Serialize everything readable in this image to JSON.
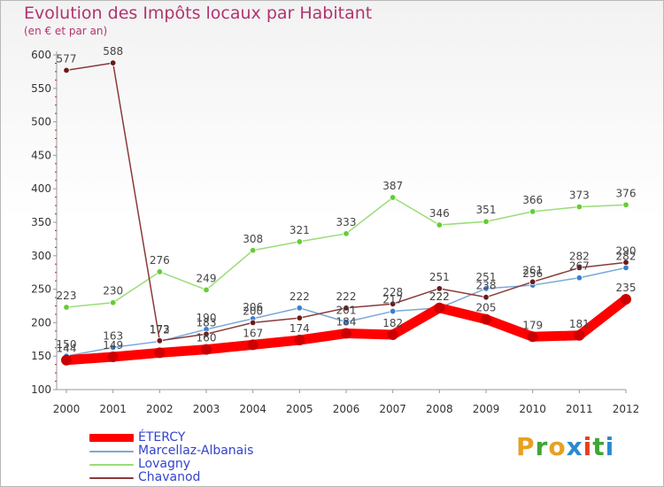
{
  "header": {
    "title": "Evolution des Impôts locaux par Habitant",
    "subtitle": "(en € et par an)"
  },
  "logo": {
    "text": "Proxiti",
    "colors": [
      "#e8a020",
      "#3fa535",
      "#e8a020",
      "#2a8ad0",
      "#e63f20",
      "#3fa535",
      "#2a8ad0"
    ]
  },
  "chart_data": {
    "type": "line",
    "title": "Evolution des Impôts locaux par Habitant",
    "subtitle": "(en € et par an)",
    "xlabel": "",
    "ylabel": "",
    "x": [
      "2000",
      "2001",
      "2002",
      "2003",
      "2004",
      "2005",
      "2006",
      "2007",
      "2008",
      "2009",
      "2010",
      "2011",
      "2012"
    ],
    "ylim": [
      100,
      600
    ],
    "yticks": [
      100,
      150,
      200,
      250,
      300,
      350,
      400,
      450,
      500,
      550,
      600
    ],
    "grid": false,
    "legend_position": "bottom-left",
    "series": [
      {
        "name": "ÉTERCY",
        "color": "#ff0000",
        "marker": "#cc0000",
        "values": [
          144,
          149,
          155,
          160,
          167,
          174,
          184,
          182,
          222,
          205,
          179,
          181,
          235
        ],
        "labels_shown": [
          true,
          true,
          false,
          true,
          true,
          true,
          true,
          true,
          true,
          true,
          true,
          true,
          true
        ]
      },
      {
        "name": "Marcellaz-Albanais",
        "color": "#7aa8d8",
        "marker": "#3a7fd0",
        "values": [
          150,
          163,
          172,
          190,
          206,
          222,
          201,
          217,
          222,
          251,
          256,
          267,
          282
        ],
        "labels_shown": [
          true,
          true,
          true,
          true,
          true,
          true,
          true,
          true,
          true,
          true,
          true,
          true,
          true
        ]
      },
      {
        "name": "Lovagny",
        "color": "#99dd77",
        "marker": "#66cc33",
        "values": [
          223,
          230,
          276,
          249,
          308,
          321,
          333,
          387,
          346,
          351,
          366,
          373,
          376
        ],
        "labels_shown": [
          true,
          true,
          true,
          true,
          true,
          true,
          true,
          true,
          true,
          true,
          true,
          true,
          true
        ]
      },
      {
        "name": "Chavanod",
        "color": "#8a3a3a",
        "marker": "#6b1a1a",
        "values": [
          577,
          588,
          173,
          183,
          200,
          207,
          222,
          228,
          251,
          238,
          261,
          282,
          290
        ],
        "labels_shown": [
          true,
          true,
          true,
          true,
          true,
          false,
          true,
          true,
          true,
          true,
          true,
          true,
          true
        ]
      }
    ]
  }
}
